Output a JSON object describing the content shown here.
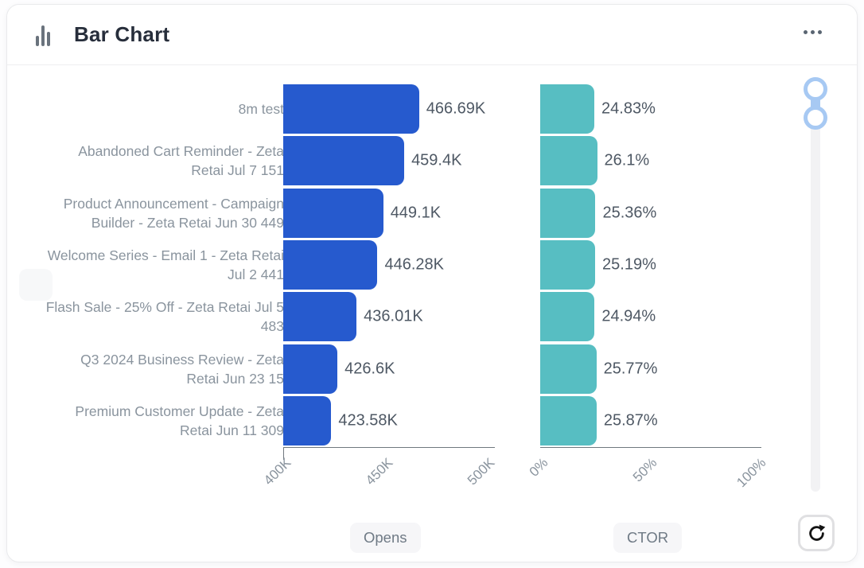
{
  "header": {
    "title": "Bar Chart"
  },
  "icons": {
    "header_icon": "bar-chart-icon",
    "menu_icon": "ellipsis-icon",
    "refresh_icon": "refresh-icon",
    "slider_icon": "range-slider-handles"
  },
  "colors": {
    "opens_bar": "#265ACE",
    "ctor_bar": "#57BEC2",
    "slider_handle": "#A7C9F3",
    "axis": "#70787F",
    "category_text": "#8A949E",
    "value_text": "#4E5864"
  },
  "chart_data": {
    "type": "bar",
    "orientation": "horizontal",
    "grid": false,
    "legend_position": "bottom",
    "categories": [
      "8m test",
      "Abandoned Cart Reminder - Zeta Retai Jul 7 151",
      "Product Announcement - Campaign Builder - Zeta Retai Jun 30 449",
      "Welcome Series - Email 1 - Zeta Retai Jul 2 441",
      "Flash Sale - 25% Off - Zeta Retai Jul 5 483",
      "Q3 2024 Business Review - Zeta Retai Jun 23 15",
      "Premium Customer Update - Zeta Retai Jun 11 309"
    ],
    "series": [
      {
        "name": "Opens",
        "unit": "K",
        "values": [
          466.69,
          459.4,
          449.1,
          446.28,
          436.01,
          426.6,
          423.58
        ],
        "value_labels": [
          "466.69K",
          "459.4K",
          "449.1K",
          "446.28K",
          "436.01K",
          "426.6K",
          "423.58K"
        ],
        "x_ticks": [
          "400K",
          "450K",
          "500K"
        ],
        "xlim": [
          400,
          500
        ],
        "color": "#265ACE"
      },
      {
        "name": "CTOR",
        "unit": "%",
        "values": [
          24.83,
          26.1,
          25.36,
          25.19,
          24.94,
          25.77,
          25.87
        ],
        "value_labels": [
          "24.83%",
          "26.1%",
          "25.36%",
          "25.19%",
          "24.94%",
          "25.77%",
          "25.87%"
        ],
        "x_ticks": [
          "0%",
          "50%",
          "100%"
        ],
        "xlim": [
          0,
          100
        ],
        "color": "#57BEC2"
      }
    ]
  }
}
